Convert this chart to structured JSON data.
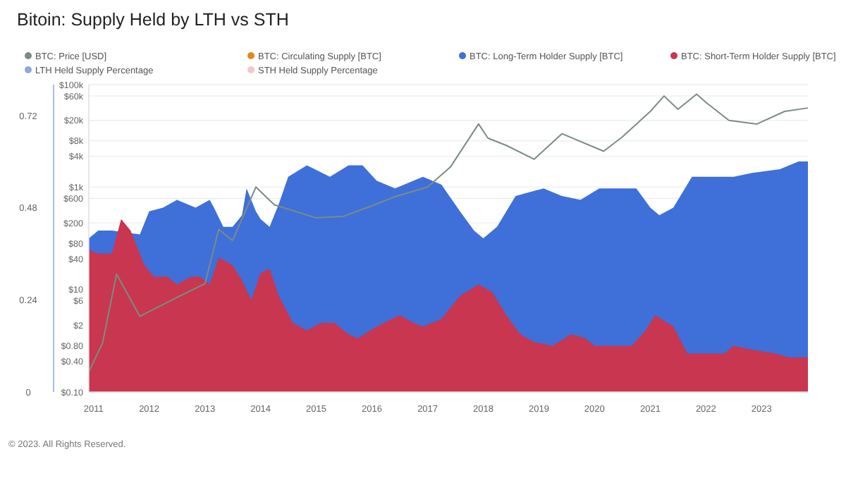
{
  "chart_data": {
    "type": "area",
    "title": "Bitoin: Supply Held by LTH vs STH",
    "annotations": [
      "© 2023. All Rights Reserved."
    ],
    "xlim": [
      "2010-12",
      "2023-11"
    ],
    "xticks": [
      "2011",
      "2012",
      "2013",
      "2014",
      "2015",
      "2016",
      "2017",
      "2018",
      "2019",
      "2020",
      "2021",
      "2022",
      "2023"
    ],
    "ylim": [
      0,
      0.8
    ],
    "yticks": [
      0,
      0.24,
      0.48,
      0.72
    ],
    "y2lim": [
      0.1,
      100000
    ],
    "y2ticks": [
      {
        "value": 100000,
        "label": "$100k"
      },
      {
        "value": 60000,
        "label": "$60k"
      },
      {
        "value": 20000,
        "label": "$20k"
      },
      {
        "value": 8000,
        "label": "$8k"
      },
      {
        "value": 4000,
        "label": "$4k"
      },
      {
        "value": 1000,
        "label": "$1k"
      },
      {
        "value": 600,
        "label": "$600"
      },
      {
        "value": 200,
        "label": "$200"
      },
      {
        "value": 80,
        "label": "$80"
      },
      {
        "value": 40,
        "label": "$40"
      },
      {
        "value": 10,
        "label": "$10"
      },
      {
        "value": 6,
        "label": "$6"
      },
      {
        "value": 2,
        "label": "$2"
      },
      {
        "value": 0.8,
        "label": "$0.80"
      },
      {
        "value": 0.4,
        "label": "$0.40"
      },
      {
        "value": 0.1,
        "label": "$0.10"
      }
    ],
    "log": "y2",
    "grid": "y",
    "legend": "top",
    "series": [
      {
        "name": "BTC: Price [USD]",
        "type": "line",
        "axis": "y2",
        "color": "#7b8c84",
        "x": [
          "2010-12",
          "2011-03",
          "2011-06",
          "2011-11",
          "2012-07",
          "2013-01",
          "2013-04",
          "2013-07",
          "2013-12",
          "2014-04",
          "2015-01",
          "2015-07",
          "2016-01",
          "2016-06",
          "2017-01",
          "2017-06",
          "2017-12",
          "2018-02",
          "2018-06",
          "2018-12",
          "2019-06",
          "2020-03",
          "2020-07",
          "2021-01",
          "2021-04",
          "2021-07",
          "2021-11",
          "2022-01",
          "2022-06",
          "2022-12",
          "2023-06",
          "2023-11"
        ],
        "values": [
          0.25,
          0.9,
          20,
          3,
          7,
          13,
          150,
          90,
          1000,
          450,
          250,
          270,
          430,
          650,
          1000,
          2500,
          17000,
          9000,
          6500,
          3500,
          11000,
          5000,
          9500,
          30000,
          60000,
          33000,
          65000,
          45000,
          20000,
          17000,
          30000,
          35000
        ]
      },
      {
        "name": "BTC: Circulating Supply [BTC]",
        "type": "line",
        "color": "#e08a1e"
      },
      {
        "name": "BTC: Long-Term Holder Supply [BTC]",
        "color": "#3f6fd9",
        "x": [
          "2010-12",
          "2011-02",
          "2011-05",
          "2011-06",
          "2011-11",
          "2012-01",
          "2012-04",
          "2012-07",
          "2012-11",
          "2013-02",
          "2013-03",
          "2013-05",
          "2013-07",
          "2013-09",
          "2013-10",
          "2013-12",
          "2014-01",
          "2014-03",
          "2014-05",
          "2014-07",
          "2014-11",
          "2015-04",
          "2015-08",
          "2015-11",
          "2016-02",
          "2016-06",
          "2016-10",
          "2016-12",
          "2017-04",
          "2017-08",
          "2017-11",
          "2018-01",
          "2018-04",
          "2018-08",
          "2019-02",
          "2019-06",
          "2019-10",
          "2020-02",
          "2020-06",
          "2020-10",
          "2021-01",
          "2021-03",
          "2021-06",
          "2021-10",
          "2022-03",
          "2022-07",
          "2022-11",
          "2023-05",
          "2023-09",
          "2023-11"
        ],
        "values": [
          0.4,
          0.42,
          0.42,
          null,
          0.41,
          0.47,
          0.48,
          0.5,
          0.48,
          0.5,
          0.48,
          0.43,
          0.43,
          0.46,
          0.53,
          0.47,
          0.45,
          0.43,
          0.49,
          0.56,
          0.59,
          0.56,
          0.59,
          0.59,
          0.55,
          0.53,
          0.55,
          0.56,
          0.54,
          0.47,
          0.42,
          0.4,
          0.43,
          0.51,
          0.53,
          0.51,
          0.5,
          0.53,
          0.53,
          0.53,
          0.48,
          0.46,
          0.48,
          0.56,
          0.56,
          0.56,
          0.57,
          0.58,
          0.6,
          0.6
        ]
      },
      {
        "name": "BTC: Short-Term Holder Supply [BTC]",
        "color": "#c9364f",
        "x": [
          "2010-12",
          "2011-02",
          "2011-05",
          "2011-07",
          "2011-09",
          "2011-10",
          "2011-12",
          "2012-02",
          "2012-05",
          "2012-07",
          "2012-10",
          "2012-12",
          "2013-02",
          "2013-04",
          "2013-07",
          "2013-09",
          "2013-11",
          "2014-01",
          "2014-03",
          "2014-05",
          "2014-08",
          "2014-11",
          "2015-02",
          "2015-05",
          "2015-08",
          "2015-10",
          "2016-02",
          "2016-07",
          "2016-10",
          "2016-12",
          "2017-04",
          "2017-08",
          "2017-12",
          "2018-03",
          "2018-06",
          "2018-09",
          "2018-12",
          "2019-04",
          "2019-08",
          "2019-11",
          "2020-01",
          "2020-04",
          "2020-09",
          "2020-12",
          "2021-02",
          "2021-06",
          "2021-09",
          "2022-03",
          "2022-05",
          "2022-07",
          "2022-11",
          "2023-04",
          "2023-07",
          "2023-11"
        ],
        "values": [
          0.37,
          0.36,
          0.36,
          0.45,
          0.42,
          0.39,
          0.33,
          0.3,
          0.3,
          0.28,
          0.3,
          0.3,
          0.28,
          0.35,
          0.33,
          0.29,
          0.24,
          0.31,
          0.32,
          0.25,
          0.18,
          0.16,
          0.18,
          0.18,
          0.15,
          0.14,
          0.17,
          0.2,
          0.18,
          0.17,
          0.19,
          0.25,
          0.28,
          0.26,
          0.2,
          0.15,
          0.13,
          0.12,
          0.15,
          0.14,
          0.12,
          0.12,
          0.12,
          0.16,
          0.2,
          0.17,
          0.1,
          0.1,
          0.1,
          0.12,
          0.11,
          0.1,
          0.09,
          0.09
        ]
      },
      {
        "name": "LTH Held Supply Percentage",
        "type": "line",
        "color": "#8fa8d8"
      },
      {
        "name": "STH Held Supply Percentage",
        "type": "line",
        "color": "#f2c6cc"
      }
    ]
  }
}
